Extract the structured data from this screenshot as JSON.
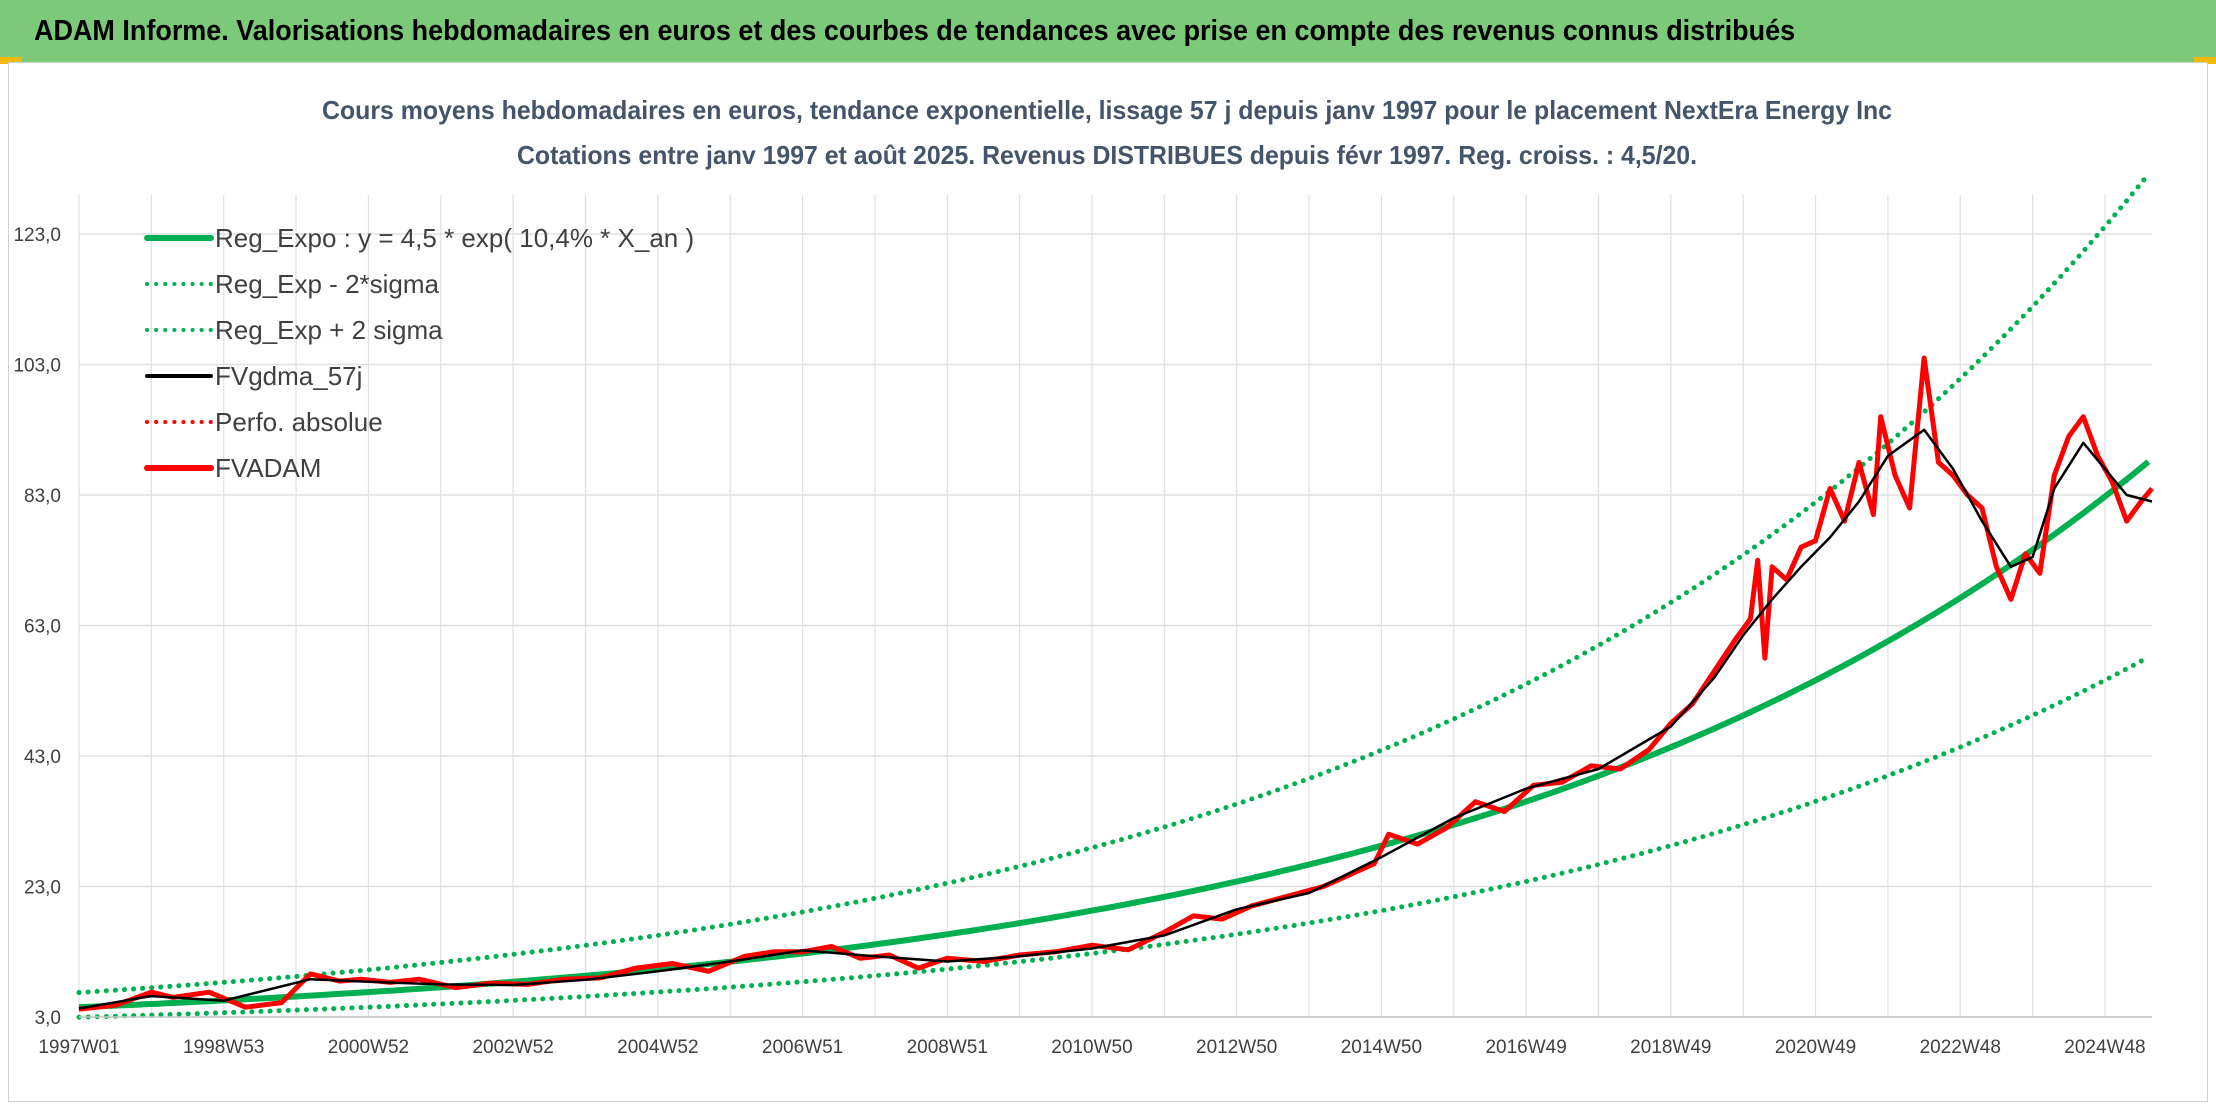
{
  "banner": {
    "title": "ADAM Informe. Valorisations hebdomadaires en euros et des courbes de tendances avec prise en compte des revenus connus distribués"
  },
  "colors": {
    "banner_bg": "#7dc97a",
    "trend": "#00b050",
    "band": "#00b050",
    "moving_average": "#000000",
    "perf_absolue": "#ff0000",
    "fvadam": "#ff0000",
    "gridline": "#e0e0e0"
  },
  "chart_data": {
    "type": "line",
    "title_line1": "Cours moyens hebdomadaires en euros, tendance exponentielle, lissage 57 j depuis janv 1997 pour le placement NextEra Energy Inc",
    "title_line2": "Cotations entre janv 1997 et août 2025. Revenus DISTRIBUES depuis févr 1997. Reg. croiss. : 4,5/20.",
    "x_tick_labels": [
      "1997W01",
      "1998W53",
      "2000W52",
      "2002W52",
      "2004W52",
      "2006W51",
      "2008W51",
      "2010W50",
      "2012W50",
      "2014W50",
      "2016W49",
      "2018W49",
      "2020W49",
      "2022W48",
      "2024W48"
    ],
    "x_tick_years": [
      1997.0,
      1999.0,
      2001.0,
      2003.0,
      2005.0,
      2007.0,
      2009.0,
      2011.0,
      2013.0,
      2015.0,
      2017.0,
      2019.0,
      2021.0,
      2023.0,
      2025.0
    ],
    "x_range": [
      1997.0,
      2025.65
    ],
    "y_tick_labels": [
      "3,0",
      "23,0",
      "43,0",
      "63,0",
      "83,0",
      "103,0",
      "123,0"
    ],
    "y_ticks": [
      3,
      23,
      43,
      63,
      83,
      103,
      123
    ],
    "ylim": [
      3,
      123
    ],
    "grid": true,
    "legend_position": "top-left",
    "legend": [
      {
        "label": "Reg_Expo : y = 4,5 * exp( 10,4% *  X_an )",
        "style": "solid-thick",
        "color": "#00b050"
      },
      {
        "label": "Reg_Exp - 2*sigma",
        "style": "dotted",
        "color": "#00b050"
      },
      {
        "label": "Reg_Exp + 2 sigma",
        "style": "dotted",
        "color": "#00b050"
      },
      {
        "label": "FVgdma_57j",
        "style": "solid",
        "color": "#000000"
      },
      {
        "label": "Perfo. absolue",
        "style": "dotted",
        "color": "#ff0000"
      },
      {
        "label": "FVADAM",
        "style": "solid-thick",
        "color": "#ff0000"
      }
    ],
    "regression": {
      "a": 4.5,
      "rate": 0.104,
      "band_low_factor": 0.66,
      "band_high_factor": 1.5
    },
    "series": [
      {
        "name": "FVADAM",
        "x": [
          1997.0,
          1997.5,
          1998.0,
          1998.3,
          1998.8,
          1999.3,
          1999.8,
          2000.2,
          2000.6,
          2000.9,
          2001.3,
          2001.7,
          2002.2,
          2002.7,
          2003.2,
          2003.7,
          2004.2,
          2004.7,
          2005.2,
          2005.7,
          2006.2,
          2006.6,
          2007.0,
          2007.4,
          2007.8,
          2008.2,
          2008.6,
          2009.0,
          2009.5,
          2010.0,
          2010.5,
          2011.0,
          2011.5,
          2012.0,
          2012.4,
          2012.8,
          2013.2,
          2013.7,
          2014.2,
          2014.6,
          2014.9,
          2015.1,
          2015.5,
          2015.9,
          2016.3,
          2016.7,
          2017.1,
          2017.5,
          2017.9,
          2018.3,
          2018.7,
          2019.0,
          2019.3,
          2019.6,
          2019.9,
          2020.1,
          2020.2,
          2020.3,
          2020.4,
          2020.6,
          2020.8,
          2021.0,
          2021.2,
          2021.4,
          2021.6,
          2021.8,
          2021.9,
          2022.1,
          2022.3,
          2022.5,
          2022.7,
          2022.9,
          2023.1,
          2023.3,
          2023.5,
          2023.7,
          2023.9,
          2024.1,
          2024.3,
          2024.5,
          2024.7,
          2024.9,
          2025.1,
          2025.3,
          2025.5,
          2025.65
        ],
        "y": [
          4.2,
          4.8,
          6.8,
          6.0,
          6.8,
          4.5,
          5.2,
          9.6,
          8.5,
          8.8,
          8.3,
          8.8,
          7.5,
          8.2,
          8.0,
          8.8,
          9.0,
          10.5,
          11.2,
          10.0,
          12.3,
          13.0,
          13.0,
          13.8,
          12.0,
          12.5,
          10.5,
          12.0,
          11.5,
          12.5,
          13.0,
          14.0,
          13.3,
          16.0,
          18.5,
          18.0,
          20.0,
          21.5,
          23.0,
          25.0,
          26.5,
          31.0,
          29.5,
          32.0,
          36.0,
          34.5,
          38.5,
          39.0,
          41.5,
          41.0,
          44.0,
          48.0,
          51.0,
          56.0,
          61.0,
          64.0,
          73.0,
          58.0,
          72.0,
          70.0,
          75.0,
          76.0,
          84.0,
          79.0,
          88.0,
          80.0,
          95.0,
          86.0,
          81.0,
          104.0,
          88.0,
          86.0,
          83.0,
          81.0,
          72.0,
          67.0,
          74.0,
          71.0,
          86.0,
          92.0,
          95.0,
          89.0,
          85.0,
          79.0,
          82.0,
          84.0
        ]
      },
      {
        "name": "FVgdma_57j",
        "x": [
          1997.0,
          1998.0,
          1999.0,
          2000.2,
          2001.0,
          2002.0,
          2003.0,
          2004.0,
          2005.0,
          2006.0,
          2007.0,
          2008.0,
          2009.0,
          2010.0,
          2011.0,
          2012.0,
          2013.0,
          2014.0,
          2015.0,
          2016.0,
          2017.0,
          2018.0,
          2019.0,
          2019.6,
          2020.0,
          2020.4,
          2020.8,
          2021.2,
          2021.6,
          2022.0,
          2022.5,
          2022.9,
          2023.3,
          2023.7,
          2024.0,
          2024.3,
          2024.7,
          2025.0,
          2025.3,
          2025.65
        ],
        "y": [
          4.3,
          6.2,
          5.5,
          8.8,
          8.4,
          8.0,
          7.9,
          8.7,
          10.0,
          11.5,
          13.2,
          12.3,
          11.5,
          12.3,
          13.5,
          15.5,
          19.5,
          22.0,
          27.5,
          33.5,
          38.0,
          41.0,
          47.5,
          55.0,
          61.5,
          67.0,
          72.0,
          76.5,
          82.0,
          89.0,
          93.0,
          87.0,
          79.0,
          72.0,
          73.5,
          84.0,
          91.0,
          87.0,
          83.0,
          82.0
        ]
      }
    ]
  }
}
